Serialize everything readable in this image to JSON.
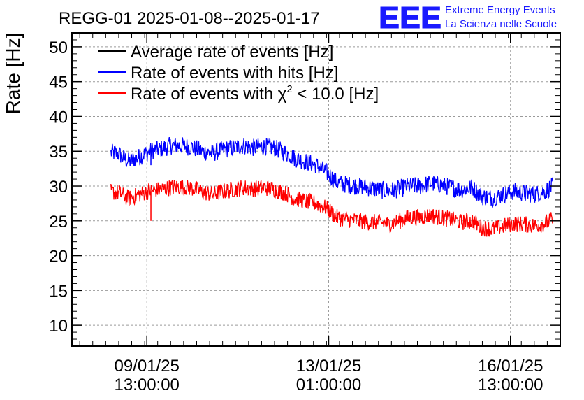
{
  "brand": {
    "logo_text": "EEE",
    "line1": "Extreme Energy Events",
    "line2": "La Scienza nelle Scuole",
    "color": "#1a1aff"
  },
  "chart_data": {
    "type": "line",
    "title": "REGG-01 2025-01-08--2025-01-17",
    "xlabel": "",
    "ylabel": "Rate [Hz]",
    "ylim": [
      7,
      52
    ],
    "yticks": [
      10,
      15,
      20,
      25,
      30,
      35,
      40,
      45,
      50
    ],
    "grid": true,
    "legend_position": "top-left",
    "x_unit": "days since 2025-01-08 00:00",
    "xlim": [
      0.1,
      9.5
    ],
    "xticks": [
      {
        "value": 1.5417,
        "line1": "09/01/25",
        "line2": "13:00:00"
      },
      {
        "value": 5.0417,
        "line1": "13/01/25",
        "line2": "01:00:00"
      },
      {
        "value": 8.5417,
        "line1": "16/01/25",
        "line2": "13:00:00"
      }
    ],
    "series": [
      {
        "name": "Average rate of events [Hz]",
        "color": "#000000",
        "x": [],
        "values": []
      },
      {
        "name": "Rate of events with hits [Hz]",
        "color": "#0000ff",
        "noise_amplitude": 1.3,
        "x": [
          0.85,
          1.0,
          1.2,
          1.4,
          1.6,
          1.8,
          2.0,
          2.2,
          2.4,
          2.6,
          2.8,
          3.0,
          3.2,
          3.4,
          3.6,
          3.8,
          4.0,
          4.2,
          4.4,
          4.6,
          4.8,
          5.0,
          5.2,
          5.4,
          5.6,
          5.8,
          6.0,
          6.2,
          6.4,
          6.6,
          6.8,
          7.0,
          7.2,
          7.4,
          7.6,
          7.8,
          8.0,
          8.2,
          8.4,
          8.6,
          8.8,
          9.0,
          9.2,
          9.35
        ],
        "values": [
          34.8,
          34.6,
          33.5,
          34.2,
          35.0,
          35.3,
          35.8,
          35.8,
          35.6,
          35.0,
          34.7,
          35.2,
          35.5,
          35.8,
          35.5,
          35.7,
          35.5,
          34.8,
          34.0,
          33.5,
          33.0,
          32.0,
          30.5,
          30.2,
          30.0,
          29.8,
          29.5,
          29.3,
          29.6,
          30.0,
          30.0,
          30.4,
          30.2,
          29.8,
          29.5,
          29.8,
          28.5,
          28.3,
          28.8,
          29.2,
          29.0,
          28.8,
          29.2,
          30.0
        ]
      },
      {
        "name": "Rate of events with χ² < 10.0 [Hz]",
        "color": "#ff0000",
        "noise_amplitude": 1.2,
        "x": [
          0.85,
          1.0,
          1.2,
          1.4,
          1.6,
          1.8,
          2.0,
          2.2,
          2.4,
          2.6,
          2.8,
          3.0,
          3.2,
          3.4,
          3.6,
          3.8,
          4.0,
          4.2,
          4.4,
          4.6,
          4.8,
          5.0,
          5.2,
          5.4,
          5.6,
          5.8,
          6.0,
          6.2,
          6.4,
          6.6,
          6.8,
          7.0,
          7.2,
          7.4,
          7.6,
          7.8,
          8.0,
          8.2,
          8.4,
          8.6,
          8.8,
          9.0,
          9.2,
          9.35
        ],
        "values": [
          29.2,
          29.0,
          28.2,
          28.8,
          29.3,
          29.5,
          29.8,
          29.9,
          29.7,
          29.2,
          28.8,
          29.2,
          29.5,
          29.8,
          29.6,
          29.8,
          29.5,
          29.0,
          28.2,
          27.8,
          27.5,
          26.8,
          25.5,
          25.2,
          25.0,
          24.8,
          24.8,
          24.5,
          25.0,
          25.5,
          25.5,
          25.8,
          25.5,
          25.2,
          24.8,
          25.0,
          24.0,
          23.8,
          24.2,
          24.6,
          24.5,
          24.3,
          24.6,
          25.2
        ]
      }
    ],
    "spikes": [
      {
        "series": 2,
        "x": 1.62,
        "value": 25.0
      },
      {
        "series": 1,
        "x": 1.62,
        "value": 33.0
      }
    ]
  }
}
